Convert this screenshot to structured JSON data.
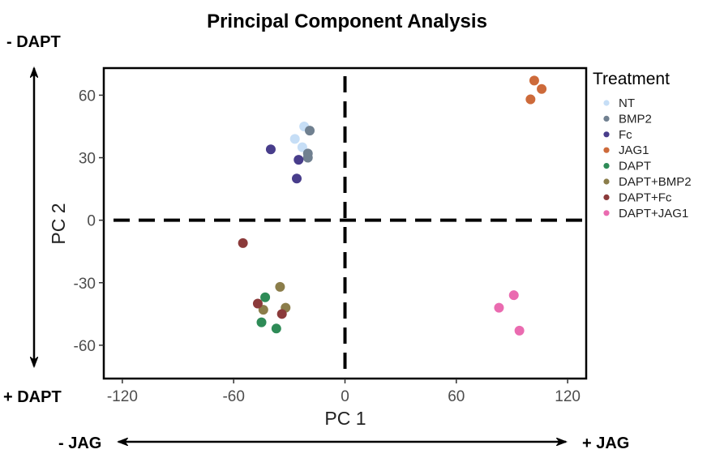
{
  "chart_data": {
    "type": "scatter",
    "title": "Principal Component Analysis",
    "xlabel": "PC 1",
    "ylabel": "PC 2",
    "xlim": [
      -130,
      130
    ],
    "ylim": [
      -76,
      73
    ],
    "xticks": [
      -120,
      -60,
      0,
      60,
      120
    ],
    "yticks": [
      60,
      30,
      0,
      -30,
      -60
    ],
    "grid": false,
    "legend_title": "Treatment",
    "legend_position": "right",
    "reference_lines": {
      "x": 0,
      "y": 0,
      "style": "dashed"
    },
    "side_labels": {
      "top_left": "- DAPT",
      "bottom_left": "+ DAPT",
      "bottom_left_arrow": "- JAG",
      "bottom_right_arrow": "+ JAG"
    },
    "series": [
      {
        "name": "NT",
        "color": "#c6def6",
        "points": [
          [
            -27,
            39
          ],
          [
            -22,
            45
          ],
          [
            -23,
            35
          ]
        ]
      },
      {
        "name": "BMP2",
        "color": "#708090",
        "points": [
          [
            -19,
            43
          ],
          [
            -20,
            32
          ],
          [
            -20,
            30
          ]
        ]
      },
      {
        "name": "Fc",
        "color": "#483d8b",
        "points": [
          [
            -40,
            34
          ],
          [
            -25,
            29
          ],
          [
            -26,
            20
          ]
        ]
      },
      {
        "name": "JAG1",
        "color": "#cd6a3a",
        "points": [
          [
            102,
            67
          ],
          [
            106,
            63
          ],
          [
            100,
            58
          ]
        ]
      },
      {
        "name": "DAPT",
        "color": "#2e8b57",
        "points": [
          [
            -43,
            -37
          ],
          [
            -45,
            -49
          ],
          [
            -37,
            -52
          ]
        ]
      },
      {
        "name": "DAPT+BMP2",
        "color": "#8b7d4a",
        "points": [
          [
            -35,
            -32
          ],
          [
            -32,
            -42
          ],
          [
            -44,
            -43
          ]
        ]
      },
      {
        "name": "DAPT+Fc",
        "color": "#8b3a3a",
        "points": [
          [
            -55,
            -11
          ],
          [
            -47,
            -40
          ],
          [
            -34,
            -45
          ]
        ]
      },
      {
        "name": "DAPT+JAG1",
        "color": "#ea6bb0",
        "points": [
          [
            91,
            -36
          ],
          [
            83,
            -42
          ],
          [
            94,
            -53
          ]
        ]
      }
    ]
  }
}
